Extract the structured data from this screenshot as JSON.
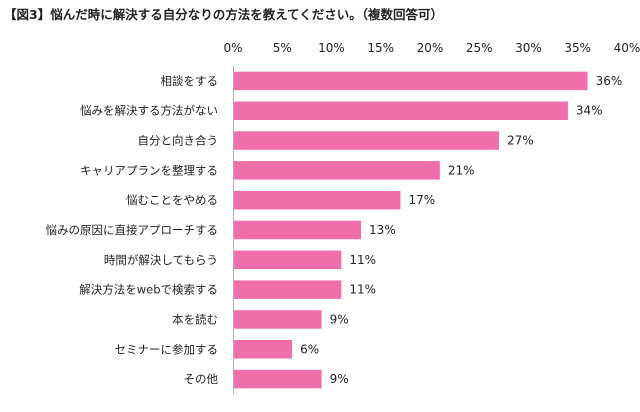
{
  "chart_data": {
    "type": "bar",
    "orientation": "horizontal",
    "title": "【図3】悩んだ時に解決する自分なりの方法を教えてください。（複数回答可）",
    "categories": [
      "相談をする",
      "悩みを解決する方法がない",
      "自分と向き合う",
      "キャリアプランを整理する",
      "悩むことをやめる",
      "悩みの原因に直接アプローチする",
      "時間が解決してもらう",
      "解決方法をwebで検索する",
      "本を読む",
      "セミナーに参加する",
      "その他"
    ],
    "values": [
      36,
      34,
      27,
      21,
      17,
      13,
      11,
      11,
      9,
      6,
      9
    ],
    "value_labels": [
      "36%",
      "34%",
      "27%",
      "21%",
      "17%",
      "13%",
      "11%",
      "11%",
      "9%",
      "6%",
      "9%"
    ],
    "xlim": [
      0,
      40
    ],
    "xticks": [
      "0%",
      "5%",
      "10%",
      "15%",
      "20%",
      "25%",
      "30%",
      "35%",
      "40%"
    ],
    "xaxis_position": "top",
    "grid": false,
    "legend": "none",
    "bar_color": "#f06fab"
  }
}
